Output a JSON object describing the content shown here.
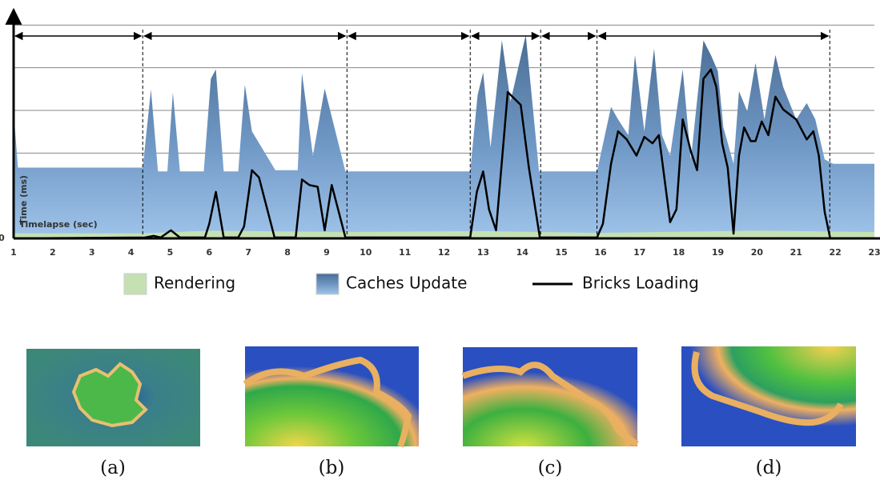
{
  "chart_data": {
    "type": "area",
    "y_label": "Time (ms)",
    "x_label": "Timelapse (sec)",
    "xlim": [
      1,
      23
    ],
    "xticks": [
      1,
      2,
      3,
      4,
      5,
      6,
      7,
      8,
      9,
      10,
      11,
      12,
      13,
      14,
      15,
      16,
      17,
      18,
      19,
      20,
      21,
      22,
      23
    ],
    "ylim": [
      0,
      5.4
    ],
    "yticks": [
      0
    ],
    "ygrid": [
      1,
      2,
      3,
      4,
      5
    ],
    "phase_boundaries": [
      1,
      4.3,
      9.52,
      12.67,
      14.47,
      15.91,
      21.86
    ],
    "legend": "bottom",
    "series": [
      {
        "name": "Rendering",
        "type": "area",
        "color": "#c5e0b3",
        "x": [
          1,
          4.3,
          6,
          9.5,
          13,
          16,
          20,
          23
        ],
        "values": [
          0.12,
          0.12,
          0.18,
          0.15,
          0.17,
          0.13,
          0.18,
          0.15
        ]
      },
      {
        "name": "Caches Update",
        "type": "area",
        "color": "#6f95c2",
        "x": [
          1.0,
          1.11,
          4.3,
          4.51,
          4.69,
          4.93,
          5.07,
          5.25,
          5.86,
          6.04,
          6.17,
          6.37,
          6.74,
          6.91,
          7.09,
          7.69,
          8.26,
          8.37,
          8.65,
          8.95,
          9.48,
          12.67,
          12.86,
          13.0,
          13.19,
          13.48,
          13.7,
          14.09,
          14.43,
          15.91,
          16.27,
          16.45,
          16.71,
          16.88,
          17.12,
          17.37,
          17.57,
          17.78,
          18.1,
          18.31,
          18.63,
          18.82,
          19.0,
          19.14,
          19.4,
          19.54,
          19.75,
          19.96,
          20.19,
          20.47,
          20.67,
          21.0,
          21.27,
          21.49,
          21.73,
          21.95,
          23.0
        ],
        "values": [
          2.98,
          1.66,
          1.66,
          3.49,
          1.57,
          1.57,
          3.42,
          1.57,
          1.57,
          3.74,
          3.96,
          1.57,
          1.57,
          3.6,
          2.51,
          1.6,
          1.6,
          3.87,
          1.94,
          3.51,
          1.57,
          1.57,
          3.36,
          3.89,
          2.13,
          4.64,
          3.21,
          4.77,
          1.57,
          1.57,
          3.08,
          2.79,
          2.42,
          4.3,
          2.51,
          4.45,
          2.42,
          1.94,
          3.96,
          1.85,
          4.64,
          4.3,
          3.92,
          2.6,
          1.75,
          3.45,
          2.98,
          4.11,
          2.79,
          4.3,
          3.55,
          2.79,
          3.17,
          2.79,
          1.85,
          1.75,
          1.75
        ]
      },
      {
        "name": "Bricks Loading",
        "type": "line",
        "color": "#000000",
        "x": [
          1.0,
          4.36,
          4.58,
          4.76,
          5.02,
          5.25,
          5.89,
          6.0,
          6.17,
          6.37,
          6.74,
          6.89,
          7.09,
          7.27,
          7.67,
          8.21,
          8.37,
          8.56,
          8.77,
          8.95,
          9.13,
          9.48,
          12.67,
          12.84,
          13.0,
          13.15,
          13.33,
          13.63,
          13.96,
          14.17,
          14.45,
          15.91,
          16.06,
          16.27,
          16.45,
          16.67,
          16.92,
          17.12,
          17.33,
          17.49,
          17.78,
          17.94,
          18.1,
          18.31,
          18.47,
          18.63,
          18.82,
          18.96,
          19.11,
          19.25,
          19.4,
          19.54,
          19.67,
          19.84,
          19.96,
          20.12,
          20.29,
          20.47,
          20.67,
          21.0,
          21.27,
          21.44,
          21.58,
          21.73,
          21.87,
          23.0
        ],
        "values": [
          0,
          0.02,
          0.06,
          0.02,
          0.19,
          0.02,
          0.02,
          0.34,
          1.09,
          0.02,
          0.02,
          0.28,
          1.6,
          1.43,
          0.02,
          0.02,
          1.38,
          1.25,
          1.21,
          0.19,
          1.25,
          0.02,
          0.02,
          1.09,
          1.57,
          0.68,
          0.19,
          3.43,
          3.13,
          1.66,
          0.02,
          0.02,
          0.34,
          1.75,
          2.51,
          2.32,
          1.94,
          2.38,
          2.23,
          2.42,
          0.38,
          0.68,
          2.79,
          2.04,
          1.6,
          3.74,
          3.96,
          3.55,
          2.23,
          1.66,
          0.11,
          1.94,
          2.6,
          2.28,
          2.28,
          2.74,
          2.42,
          3.32,
          3.02,
          2.79,
          2.32,
          2.51,
          1.94,
          0.62,
          0,
          0
        ]
      }
    ]
  },
  "panels": [
    "(a)",
    "(b)",
    "(c)",
    "(d)"
  ]
}
